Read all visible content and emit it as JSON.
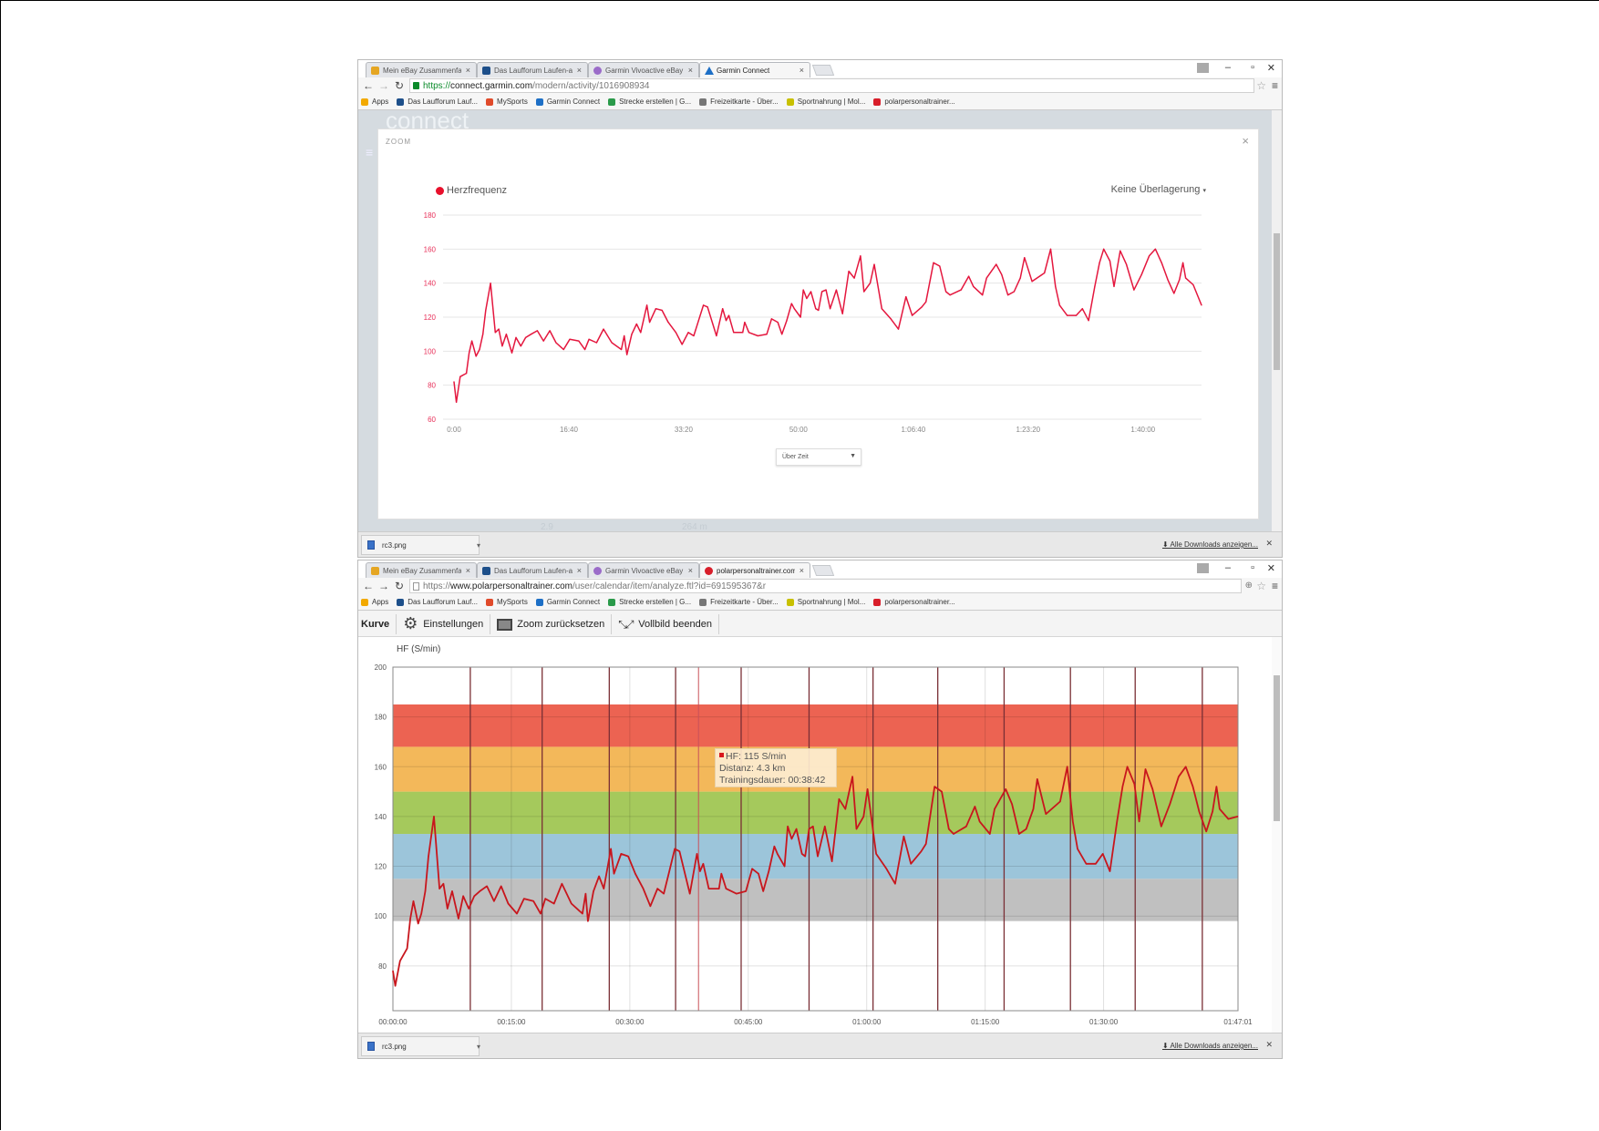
{
  "windows": [
    {
      "tabs": [
        {
          "label": "Mein eBay Zusammenfas",
          "icon": "ebay-icon"
        },
        {
          "label": "Das Laufforum Laufen-akt",
          "icon": "laufforum-icon"
        },
        {
          "label": "Garmin Vivoactive eBay K",
          "icon": "ebay-icon"
        },
        {
          "label": "Garmin Connect",
          "icon": "garmin-icon",
          "active": true
        }
      ],
      "url_scheme": "https://",
      "url_host": "connect.garmin.com",
      "url_path": "/modern/activity/1016908934",
      "background_text": {
        "logo": "connect",
        "stat1": "2.9",
        "stat2": "264 m"
      },
      "modal": {
        "title": "ZOOM",
        "close": "×",
        "legend": "Herzfrequenz",
        "overlay_select": "Keine Überlagerung",
        "xaxis_select": "Über Zeit"
      },
      "download": {
        "file": "rc3.png",
        "show_all": "Alle Downloads anzeigen..."
      }
    },
    {
      "tabs": [
        {
          "label": "Mein eBay Zusammenfas",
          "icon": "ebay-icon"
        },
        {
          "label": "Das Laufforum Laufen-akt",
          "icon": "laufforum-icon"
        },
        {
          "label": "Garmin Vivoactive eBay K",
          "icon": "ebay-icon"
        },
        {
          "label": "polarpersonaltrainer.com",
          "icon": "polar-icon",
          "active": true
        }
      ],
      "url_scheme": "https://",
      "url_host": "www.polarpersonaltrainer.com",
      "url_path": "/user/calendar/item/analyze.ftl?id=691595367&r",
      "toolbar": {
        "curve": "Kurve",
        "settings": "Einstellungen",
        "reset_zoom": "Zoom zurücksetzen",
        "exit_fullscreen": "Vollbild beenden"
      },
      "tooltip": {
        "hf": "HF: 115 S/min",
        "distance": "Distanz: 4.3 km",
        "duration": "Trainingsdauer: 00:38:42"
      },
      "download": {
        "file": "rc3.png",
        "show_all": "Alle Downloads anzeigen..."
      }
    }
  ],
  "bookmarks": [
    "Apps",
    "Das Laufforum Lauf...",
    "MySports",
    "Garmin Connect",
    "Strecke erstellen | G...",
    "Freizeitkarte - Über...",
    "Sportnahrung | Mol...",
    "polarpersonaltrainer..."
  ],
  "chart_data": [
    {
      "type": "line",
      "title": "",
      "legend": "Herzfrequenz",
      "color": "#e4173e",
      "x_unit": "minutes",
      "xlim": [
        0,
        108.5
      ],
      "ylim": [
        60,
        180
      ],
      "y_ticks": [
        60,
        80,
        100,
        120,
        140,
        160,
        180
      ],
      "x_ticks": [
        {
          "value": 0,
          "label": "0:00"
        },
        {
          "value": 16.667,
          "label": "16:40"
        },
        {
          "value": 33.333,
          "label": "33:20"
        },
        {
          "value": 50,
          "label": "50:00"
        },
        {
          "value": 66.667,
          "label": "1:06:40"
        },
        {
          "value": 83.333,
          "label": "1:23:20"
        },
        {
          "value": 100,
          "label": "1:40:00"
        }
      ],
      "grid": true,
      "points": [
        [
          0,
          82
        ],
        [
          0.35,
          70
        ],
        [
          0.9,
          85
        ],
        [
          1.8,
          87
        ],
        [
          2.2,
          99
        ],
        [
          2.6,
          106
        ],
        [
          3.2,
          97
        ],
        [
          3.7,
          101
        ],
        [
          4.2,
          110
        ],
        [
          4.6,
          124
        ],
        [
          5.3,
          140
        ],
        [
          6.0,
          111
        ],
        [
          6.5,
          113
        ],
        [
          7.0,
          103
        ],
        [
          7.6,
          110
        ],
        [
          8.4,
          99
        ],
        [
          9.0,
          108
        ],
        [
          9.7,
          103
        ],
        [
          10.4,
          108
        ],
        [
          11.2,
          110
        ],
        [
          12.1,
          112
        ],
        [
          13.0,
          106
        ],
        [
          13.9,
          112
        ],
        [
          14.8,
          105
        ],
        [
          15.9,
          101
        ],
        [
          16.8,
          107
        ],
        [
          18.1,
          106
        ],
        [
          19.0,
          101
        ],
        [
          19.6,
          107
        ],
        [
          20.7,
          105
        ],
        [
          21.7,
          113
        ],
        [
          22.9,
          105
        ],
        [
          24.3,
          101
        ],
        [
          24.7,
          109
        ],
        [
          25.1,
          98
        ],
        [
          25.8,
          110
        ],
        [
          26.5,
          116
        ],
        [
          27.1,
          111
        ],
        [
          28.0,
          127
        ],
        [
          28.4,
          117
        ],
        [
          29.3,
          125
        ],
        [
          30.2,
          124
        ],
        [
          31.1,
          117
        ],
        [
          32.2,
          111
        ],
        [
          33.1,
          104
        ],
        [
          34.0,
          111
        ],
        [
          34.8,
          109
        ],
        [
          35.5,
          118
        ],
        [
          36.2,
          127
        ],
        [
          36.8,
          126
        ],
        [
          38.1,
          109
        ],
        [
          39.0,
          125
        ],
        [
          39.5,
          118
        ],
        [
          39.9,
          121
        ],
        [
          40.6,
          111
        ],
        [
          41.9,
          111
        ],
        [
          42.2,
          117
        ],
        [
          42.8,
          111
        ],
        [
          44.1,
          109
        ],
        [
          45.4,
          110
        ],
        [
          46.1,
          119
        ],
        [
          47.0,
          117
        ],
        [
          47.6,
          110
        ],
        [
          48.3,
          118
        ],
        [
          49.0,
          128
        ],
        [
          49.4,
          125
        ],
        [
          50.3,
          120
        ],
        [
          50.7,
          136
        ],
        [
          51.2,
          131
        ],
        [
          51.8,
          135
        ],
        [
          52.5,
          125
        ],
        [
          52.9,
          124
        ],
        [
          53.4,
          135
        ],
        [
          54.0,
          136
        ],
        [
          54.6,
          125
        ],
        [
          55.5,
          136
        ],
        [
          56.4,
          122
        ],
        [
          57.3,
          147
        ],
        [
          58.1,
          143
        ],
        [
          59.0,
          156
        ],
        [
          59.5,
          135
        ],
        [
          60.4,
          140
        ],
        [
          61.0,
          151
        ],
        [
          62.1,
          125
        ],
        [
          63.4,
          119
        ],
        [
          64.5,
          113
        ],
        [
          65.6,
          132
        ],
        [
          66.5,
          121
        ],
        [
          67.9,
          126
        ],
        [
          68.5,
          129
        ],
        [
          69.6,
          152
        ],
        [
          70.5,
          150
        ],
        [
          71.4,
          135
        ],
        [
          72.0,
          133
        ],
        [
          73.6,
          136
        ],
        [
          74.7,
          144
        ],
        [
          75.4,
          138
        ],
        [
          76.7,
          133
        ],
        [
          77.3,
          143
        ],
        [
          78.7,
          151
        ],
        [
          79.5,
          145
        ],
        [
          80.4,
          133
        ],
        [
          81.3,
          135
        ],
        [
          82.2,
          143
        ],
        [
          82.8,
          155
        ],
        [
          83.9,
          141
        ],
        [
          85.7,
          146
        ],
        [
          86.6,
          160
        ],
        [
          87.3,
          138
        ],
        [
          87.9,
          127
        ],
        [
          89.0,
          121
        ],
        [
          90.3,
          121
        ],
        [
          91.2,
          125
        ],
        [
          92.1,
          118
        ],
        [
          93.0,
          138
        ],
        [
          93.7,
          152
        ],
        [
          94.3,
          160
        ],
        [
          95.2,
          153
        ],
        [
          95.8,
          138
        ],
        [
          96.7,
          159
        ],
        [
          97.6,
          151
        ],
        [
          98.7,
          136
        ],
        [
          99.8,
          145
        ],
        [
          100.9,
          156
        ],
        [
          101.8,
          160
        ],
        [
          102.7,
          152
        ],
        [
          103.6,
          142
        ],
        [
          104.5,
          134
        ],
        [
          105.3,
          142
        ],
        [
          105.8,
          152
        ],
        [
          106.2,
          143
        ],
        [
          107.3,
          139
        ],
        [
          108.5,
          127
        ]
      ]
    },
    {
      "type": "line",
      "title": "",
      "ylabel": "HF (S/min)",
      "color": "#c8161d",
      "x_unit": "minutes",
      "xlim": [
        0,
        107.02
      ],
      "ylim": [
        62,
        200
      ],
      "y_ticks": [
        80,
        100,
        120,
        140,
        160,
        180,
        200
      ],
      "x_ticks": [
        {
          "value": 0,
          "label": "00:00:00"
        },
        {
          "value": 15,
          "label": "00:15:00"
        },
        {
          "value": 30,
          "label": "00:30:00"
        },
        {
          "value": 45,
          "label": "00:45:00"
        },
        {
          "value": 60,
          "label": "01:00:00"
        },
        {
          "value": 75,
          "label": "01:15:00"
        },
        {
          "value": 90,
          "label": "01:30:00"
        },
        {
          "value": 107.02,
          "label": "01:47:01"
        }
      ],
      "grid": true,
      "zones": [
        {
          "from": 98,
          "to": 115,
          "color": "#c0c0c0"
        },
        {
          "from": 115,
          "to": 133,
          "color": "#9cc5da"
        },
        {
          "from": 133,
          "to": 150,
          "color": "#a5c95c"
        },
        {
          "from": 150,
          "to": 168,
          "color": "#f3b85a"
        },
        {
          "from": 168,
          "to": 185,
          "color": "#ec6352"
        }
      ],
      "lap_markers": [
        9.8,
        18.9,
        27.4,
        35.8,
        44.1,
        52.7,
        60.8,
        69.0,
        77.4,
        85.8,
        94.0,
        102.5
      ],
      "cursor": 38.7,
      "points": [
        [
          0,
          78
        ],
        [
          0.3,
          72
        ],
        [
          0.9,
          82
        ],
        [
          1.8,
          87
        ],
        [
          2.2,
          99
        ],
        [
          2.6,
          106
        ],
        [
          3.2,
          97
        ],
        [
          3.6,
          101
        ],
        [
          4.1,
          110
        ],
        [
          4.5,
          124
        ],
        [
          5.2,
          140
        ],
        [
          5.9,
          111
        ],
        [
          6.4,
          113
        ],
        [
          6.9,
          103
        ],
        [
          7.5,
          110
        ],
        [
          8.3,
          99
        ],
        [
          8.9,
          108
        ],
        [
          9.6,
          103
        ],
        [
          10.3,
          108
        ],
        [
          11.0,
          110
        ],
        [
          11.9,
          112
        ],
        [
          12.8,
          106
        ],
        [
          13.7,
          112
        ],
        [
          14.6,
          105
        ],
        [
          15.7,
          101
        ],
        [
          16.6,
          107
        ],
        [
          17.8,
          106
        ],
        [
          18.7,
          101
        ],
        [
          19.3,
          107
        ],
        [
          20.4,
          105
        ],
        [
          21.4,
          113
        ],
        [
          22.6,
          105
        ],
        [
          24.0,
          101
        ],
        [
          24.4,
          109
        ],
        [
          24.7,
          98
        ],
        [
          25.4,
          110
        ],
        [
          26.1,
          116
        ],
        [
          26.7,
          111
        ],
        [
          27.6,
          127
        ],
        [
          28.0,
          117
        ],
        [
          28.9,
          125
        ],
        [
          29.8,
          124
        ],
        [
          30.7,
          117
        ],
        [
          31.7,
          111
        ],
        [
          32.6,
          104
        ],
        [
          33.5,
          111
        ],
        [
          34.3,
          109
        ],
        [
          35.0,
          118
        ],
        [
          35.7,
          127
        ],
        [
          36.3,
          126
        ],
        [
          37.6,
          109
        ],
        [
          38.5,
          125
        ],
        [
          38.9,
          118
        ],
        [
          39.3,
          121
        ],
        [
          40.0,
          111
        ],
        [
          41.3,
          111
        ],
        [
          41.6,
          117
        ],
        [
          42.2,
          111
        ],
        [
          43.5,
          109
        ],
        [
          44.7,
          110
        ],
        [
          45.5,
          119
        ],
        [
          46.3,
          117
        ],
        [
          46.9,
          110
        ],
        [
          47.6,
          118
        ],
        [
          48.3,
          128
        ],
        [
          48.7,
          125
        ],
        [
          49.6,
          120
        ],
        [
          50.0,
          136
        ],
        [
          50.5,
          131
        ],
        [
          51.1,
          135
        ],
        [
          51.8,
          125
        ],
        [
          52.2,
          124
        ],
        [
          52.7,
          135
        ],
        [
          53.2,
          136
        ],
        [
          53.8,
          124
        ],
        [
          54.7,
          136
        ],
        [
          55.6,
          122
        ],
        [
          56.5,
          147
        ],
        [
          57.3,
          143
        ],
        [
          58.2,
          156
        ],
        [
          58.7,
          135
        ],
        [
          59.6,
          140
        ],
        [
          60.1,
          151
        ],
        [
          61.2,
          125
        ],
        [
          62.5,
          119
        ],
        [
          63.6,
          113
        ],
        [
          64.7,
          132
        ],
        [
          65.6,
          121
        ],
        [
          66.9,
          126
        ],
        [
          67.5,
          129
        ],
        [
          68.6,
          152
        ],
        [
          69.5,
          150
        ],
        [
          70.4,
          135
        ],
        [
          71.0,
          133
        ],
        [
          72.6,
          136
        ],
        [
          73.7,
          144
        ],
        [
          74.3,
          138
        ],
        [
          75.6,
          133
        ],
        [
          76.2,
          143
        ],
        [
          77.6,
          151
        ],
        [
          78.4,
          145
        ],
        [
          79.3,
          133
        ],
        [
          80.2,
          135
        ],
        [
          81.1,
          143
        ],
        [
          81.6,
          155
        ],
        [
          82.7,
          141
        ],
        [
          84.5,
          146
        ],
        [
          85.4,
          160
        ],
        [
          86.1,
          138
        ],
        [
          86.7,
          127
        ],
        [
          87.8,
          121
        ],
        [
          89.0,
          121
        ],
        [
          89.9,
          125
        ],
        [
          90.8,
          118
        ],
        [
          91.7,
          138
        ],
        [
          92.4,
          152
        ],
        [
          93.0,
          160
        ],
        [
          93.9,
          153
        ],
        [
          94.5,
          138
        ],
        [
          95.3,
          159
        ],
        [
          96.2,
          151
        ],
        [
          97.3,
          136
        ],
        [
          98.4,
          145
        ],
        [
          99.5,
          156
        ],
        [
          100.4,
          160
        ],
        [
          101.3,
          152
        ],
        [
          102.1,
          142
        ],
        [
          103.0,
          134
        ],
        [
          103.8,
          142
        ],
        [
          104.3,
          152
        ],
        [
          104.7,
          143
        ],
        [
          105.8,
          139
        ],
        [
          107.0,
          140
        ]
      ]
    }
  ]
}
